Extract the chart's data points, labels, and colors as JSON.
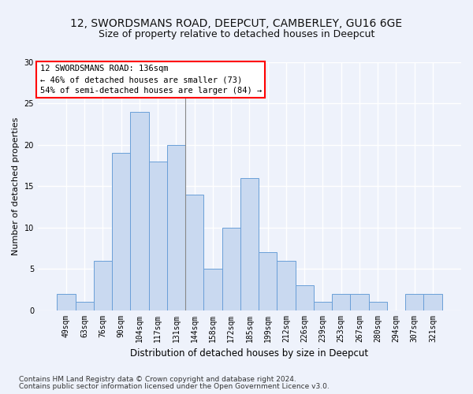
{
  "title": "12, SWORDSMANS ROAD, DEEPCUT, CAMBERLEY, GU16 6GE",
  "subtitle": "Size of property relative to detached houses in Deepcut",
  "xlabel": "Distribution of detached houses by size in Deepcut",
  "ylabel": "Number of detached properties",
  "categories": [
    "49sqm",
    "63sqm",
    "76sqm",
    "90sqm",
    "104sqm",
    "117sqm",
    "131sqm",
    "144sqm",
    "158sqm",
    "172sqm",
    "185sqm",
    "199sqm",
    "212sqm",
    "226sqm",
    "239sqm",
    "253sqm",
    "267sqm",
    "280sqm",
    "294sqm",
    "307sqm",
    "321sqm"
  ],
  "values": [
    2,
    1,
    6,
    19,
    24,
    18,
    20,
    14,
    5,
    10,
    16,
    7,
    6,
    3,
    1,
    2,
    2,
    1,
    0,
    2,
    2
  ],
  "bar_color": "#c9d9f0",
  "bar_edge_color": "#6a9fd8",
  "annotation_box_text": "12 SWORDSMANS ROAD: 136sqm\n← 46% of detached houses are smaller (73)\n54% of semi-detached houses are larger (84) →",
  "vline_x": 6.5,
  "ylim": [
    0,
    30
  ],
  "yticks": [
    0,
    5,
    10,
    15,
    20,
    25,
    30
  ],
  "footer_line1": "Contains HM Land Registry data © Crown copyright and database right 2024.",
  "footer_line2": "Contains public sector information licensed under the Open Government Licence v3.0.",
  "bg_color": "#eef2fb",
  "grid_color": "#ffffff",
  "title_fontsize": 10,
  "subtitle_fontsize": 9,
  "xlabel_fontsize": 8.5,
  "ylabel_fontsize": 8,
  "tick_fontsize": 7,
  "footer_fontsize": 6.5,
  "ann_fontsize": 7.5
}
